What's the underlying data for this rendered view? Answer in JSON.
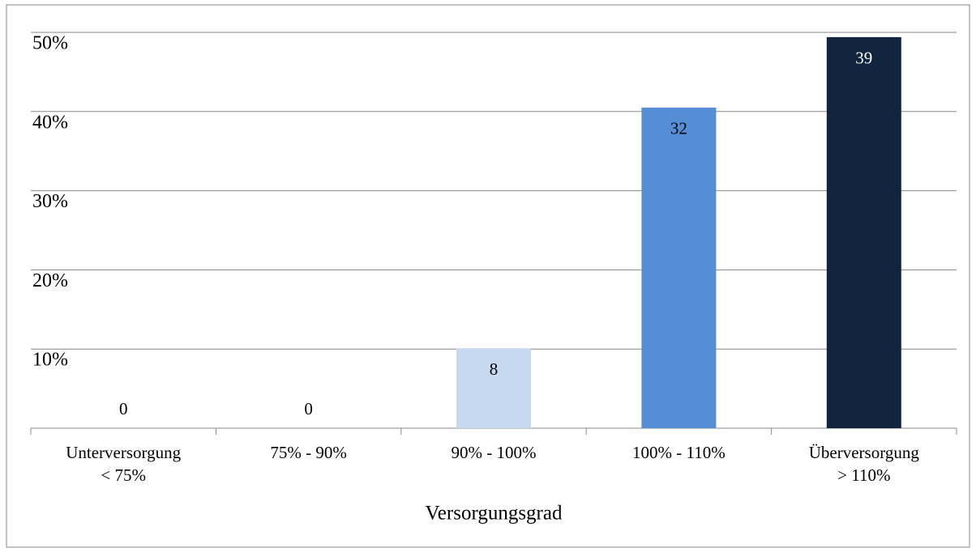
{
  "chart_data": {
    "type": "bar",
    "categories": [
      [
        "Unterversorgung",
        "< 75%"
      ],
      [
        "75% - 90%"
      ],
      [
        "90% - 100%"
      ],
      [
        "100% - 110%"
      ],
      [
        "Überversorgung",
        "> 110%"
      ]
    ],
    "values": [
      0,
      0,
      10.1,
      40.5,
      49.4
    ],
    "counts": [
      0,
      0,
      8,
      32,
      39
    ],
    "colors": [
      "#c6d9f1",
      "#c6d9f1",
      "#c6d9f1",
      "#558ed5",
      "#10243e"
    ],
    "x_label": "Versorgungsgrad",
    "ylim": [
      0,
      50
    ],
    "yticks": [
      {
        "value": 10,
        "label": "10%"
      },
      {
        "value": 20,
        "label": "20%"
      },
      {
        "value": 30,
        "label": "30%"
      },
      {
        "value": 40,
        "label": "40%"
      },
      {
        "value": 50,
        "label": "50%"
      }
    ],
    "grid": true
  }
}
